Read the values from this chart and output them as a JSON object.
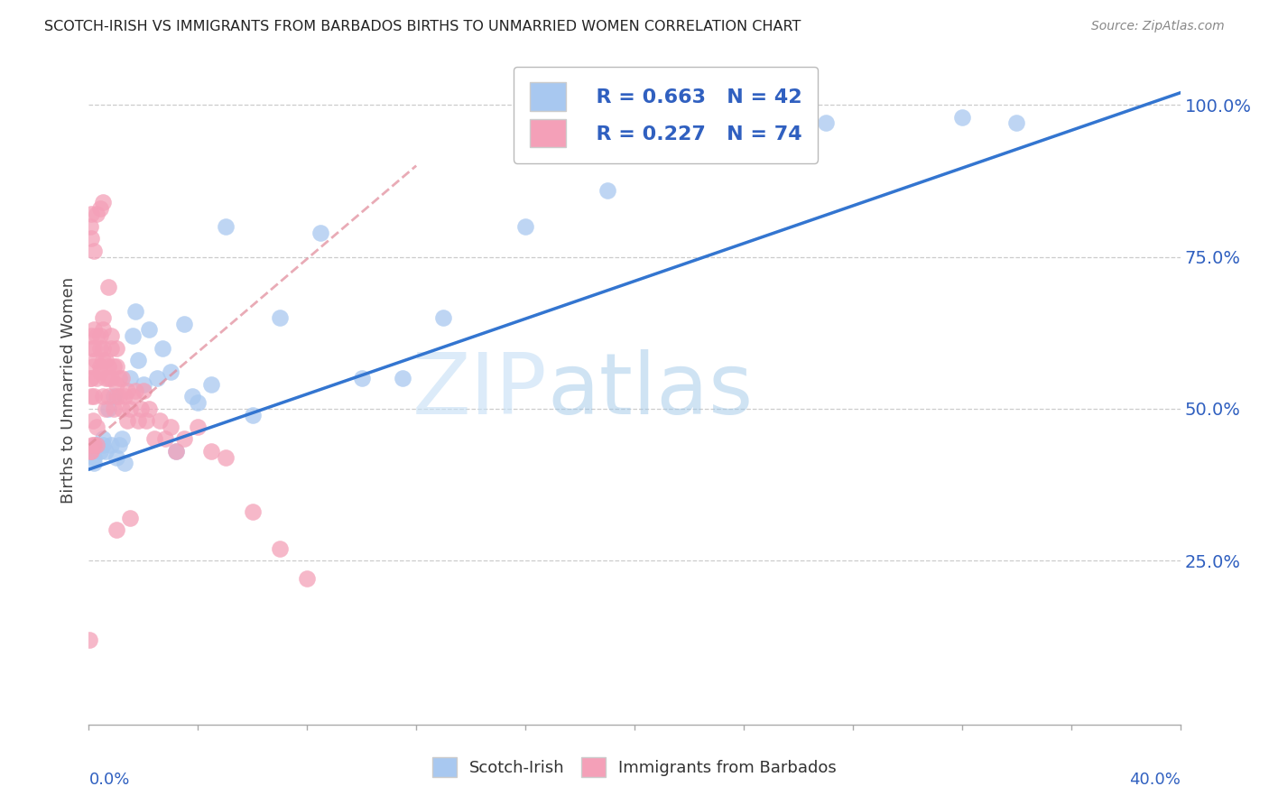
{
  "title": "SCOTCH-IRISH VS IMMIGRANTS FROM BARBADOS BIRTHS TO UNMARRIED WOMEN CORRELATION CHART",
  "source": "Source: ZipAtlas.com",
  "ylabel": "Births to Unmarried Women",
  "ylabel_right_ticks": [
    "100.0%",
    "75.0%",
    "50.0%",
    "25.0%"
  ],
  "ylabel_right_values": [
    1.0,
    0.75,
    0.5,
    0.25
  ],
  "xlim": [
    0.0,
    0.4
  ],
  "ylim": [
    -0.02,
    1.08
  ],
  "legend_blue_r": "R = 0.663",
  "legend_blue_n": "N = 42",
  "legend_pink_r": "R = 0.227",
  "legend_pink_n": "N = 74",
  "legend_label_blue": "Scotch-Irish",
  "legend_label_pink": "Immigrants from Barbados",
  "blue_color": "#a8c8f0",
  "pink_color": "#f4a0b8",
  "blue_line_color": "#3375d0",
  "pink_line_color": "#e08898",
  "legend_text_color": "#3060c0",
  "watermark_zip": "ZIP",
  "watermark_atlas": "atlas",
  "scotch_irish_x": [
    0.001,
    0.002,
    0.002,
    0.003,
    0.004,
    0.005,
    0.005,
    0.006,
    0.007,
    0.008,
    0.009,
    0.01,
    0.011,
    0.012,
    0.013,
    0.015,
    0.016,
    0.017,
    0.018,
    0.02,
    0.022,
    0.025,
    0.027,
    0.03,
    0.032,
    0.035,
    0.038,
    0.04,
    0.045,
    0.05,
    0.06,
    0.07,
    0.085,
    0.1,
    0.115,
    0.13,
    0.16,
    0.19,
    0.22,
    0.27,
    0.32,
    0.34
  ],
  "scotch_irish_y": [
    0.43,
    0.41,
    0.42,
    0.44,
    0.43,
    0.44,
    0.45,
    0.43,
    0.5,
    0.44,
    0.52,
    0.42,
    0.44,
    0.45,
    0.41,
    0.55,
    0.62,
    0.66,
    0.58,
    0.54,
    0.63,
    0.55,
    0.6,
    0.56,
    0.43,
    0.64,
    0.52,
    0.51,
    0.54,
    0.8,
    0.49,
    0.65,
    0.79,
    0.55,
    0.55,
    0.65,
    0.8,
    0.86,
    0.95,
    0.97,
    0.98,
    0.97
  ],
  "barbados_x": [
    0.0003,
    0.0005,
    0.0006,
    0.0008,
    0.001,
    0.001,
    0.001,
    0.0012,
    0.0013,
    0.0015,
    0.0015,
    0.002,
    0.002,
    0.002,
    0.002,
    0.0025,
    0.003,
    0.003,
    0.003,
    0.003,
    0.004,
    0.004,
    0.004,
    0.004,
    0.005,
    0.005,
    0.005,
    0.005,
    0.005,
    0.006,
    0.006,
    0.006,
    0.007,
    0.007,
    0.007,
    0.007,
    0.008,
    0.008,
    0.008,
    0.009,
    0.009,
    0.01,
    0.01,
    0.01,
    0.01,
    0.011,
    0.011,
    0.012,
    0.012,
    0.013,
    0.014,
    0.014,
    0.015,
    0.016,
    0.017,
    0.018,
    0.019,
    0.02,
    0.021,
    0.022,
    0.024,
    0.026,
    0.028,
    0.03,
    0.032,
    0.035,
    0.04,
    0.045,
    0.05,
    0.06,
    0.07,
    0.08,
    0.01,
    0.015
  ],
  "barbados_y": [
    0.12,
    0.43,
    0.55,
    0.43,
    0.62,
    0.55,
    0.52,
    0.44,
    0.6,
    0.48,
    0.57,
    0.44,
    0.52,
    0.6,
    0.63,
    0.58,
    0.44,
    0.47,
    0.55,
    0.62,
    0.57,
    0.6,
    0.62,
    0.56,
    0.52,
    0.58,
    0.6,
    0.63,
    0.65,
    0.5,
    0.55,
    0.58,
    0.52,
    0.57,
    0.55,
    0.7,
    0.62,
    0.6,
    0.55,
    0.57,
    0.5,
    0.52,
    0.57,
    0.54,
    0.6,
    0.55,
    0.52,
    0.5,
    0.55,
    0.52,
    0.53,
    0.48,
    0.5,
    0.52,
    0.53,
    0.48,
    0.5,
    0.53,
    0.48,
    0.5,
    0.45,
    0.48,
    0.45,
    0.47,
    0.43,
    0.45,
    0.47,
    0.43,
    0.42,
    0.33,
    0.27,
    0.22,
    0.3,
    0.32
  ],
  "barbados_extra_x": [
    0.0005,
    0.001,
    0.001,
    0.002,
    0.003,
    0.004,
    0.005
  ],
  "barbados_extra_y": [
    0.8,
    0.78,
    0.82,
    0.76,
    0.82,
    0.83,
    0.84
  ]
}
